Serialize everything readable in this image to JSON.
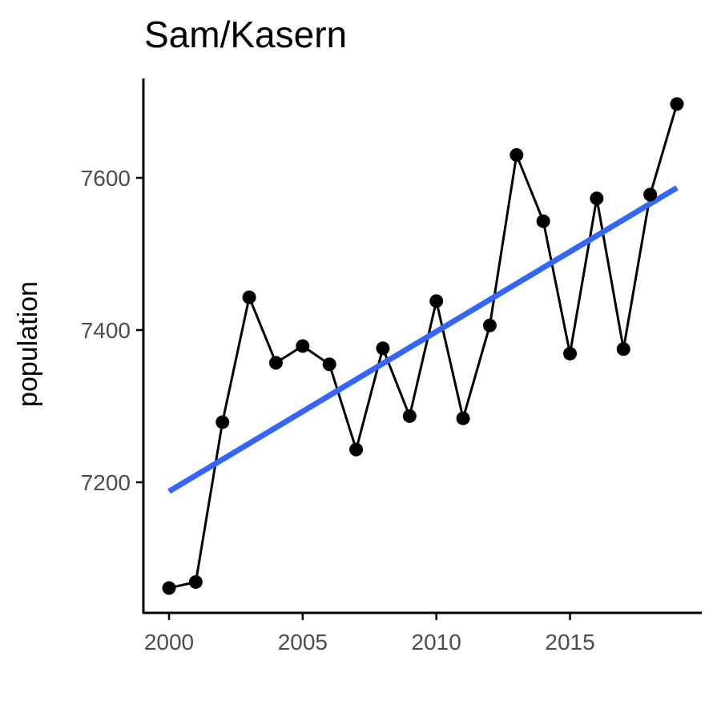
{
  "chart_data": {
    "type": "line",
    "title": "Sam/Kasern",
    "xlabel": "",
    "ylabel": "population",
    "x": [
      2000,
      2001,
      2002,
      2003,
      2004,
      2005,
      2006,
      2007,
      2008,
      2009,
      2010,
      2011,
      2012,
      2013,
      2014,
      2015,
      2016,
      2017,
      2018,
      2019
    ],
    "series": [
      {
        "values": [
          7061,
          7069,
          7279,
          7443,
          7357,
          7379,
          7355,
          7243,
          7376,
          7287,
          7438,
          7284,
          7406,
          7630,
          7543,
          7369,
          7573,
          7375,
          7578,
          7697
        ]
      }
    ],
    "trend": {
      "type": "linear-fit",
      "start": [
        2000,
        7188
      ],
      "end": [
        2019,
        7587
      ]
    },
    "xlim": [
      1999.8,
      2019.9
    ],
    "ylim": [
      7050,
      7720
    ],
    "xticks": [
      2000,
      2005,
      2010,
      2015
    ],
    "yticks": [
      7200,
      7400,
      7600
    ],
    "grid": false,
    "legend": "none",
    "colors": {
      "line": "#000000",
      "points": "#000000",
      "trend": "#3366FF",
      "tick_text": "#4D4D4D",
      "axis": "#000000"
    }
  }
}
